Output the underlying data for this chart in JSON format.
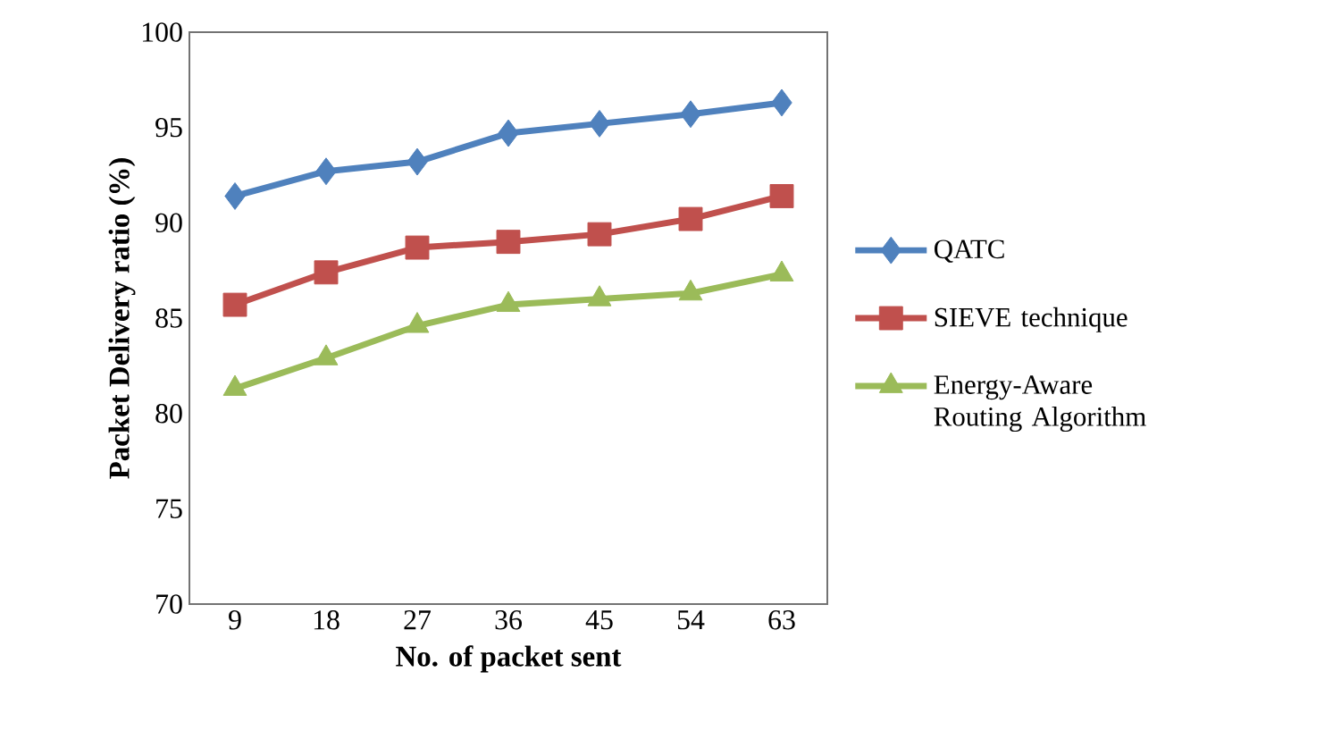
{
  "chart_data": {
    "type": "line",
    "xlabel": "No. of  packet sent",
    "ylabel": "Packet Delivery ratio (%)",
    "categories": [
      "9",
      "18",
      "27",
      "36",
      "45",
      "54",
      "63"
    ],
    "ylim": [
      70,
      100
    ],
    "yticks": [
      70,
      75,
      80,
      85,
      90,
      95,
      100
    ],
    "legend": "right",
    "grid": false,
    "series": [
      {
        "name": "QATC",
        "color": "#4f81bd",
        "marker": "diamond",
        "values": [
          91.4,
          92.7,
          93.2,
          94.7,
          95.2,
          95.7,
          96.3
        ]
      },
      {
        "name": "SIEVE technique",
        "color": "#c0504d",
        "marker": "square",
        "values": [
          85.7,
          87.4,
          88.7,
          89.0,
          89.4,
          90.2,
          91.4
        ]
      },
      {
        "name": "Energy-Aware Routing Algorithm",
        "color": "#9bbb59",
        "marker": "triangle",
        "values": [
          81.3,
          82.9,
          84.6,
          85.7,
          86.0,
          86.3,
          87.3
        ]
      }
    ]
  }
}
